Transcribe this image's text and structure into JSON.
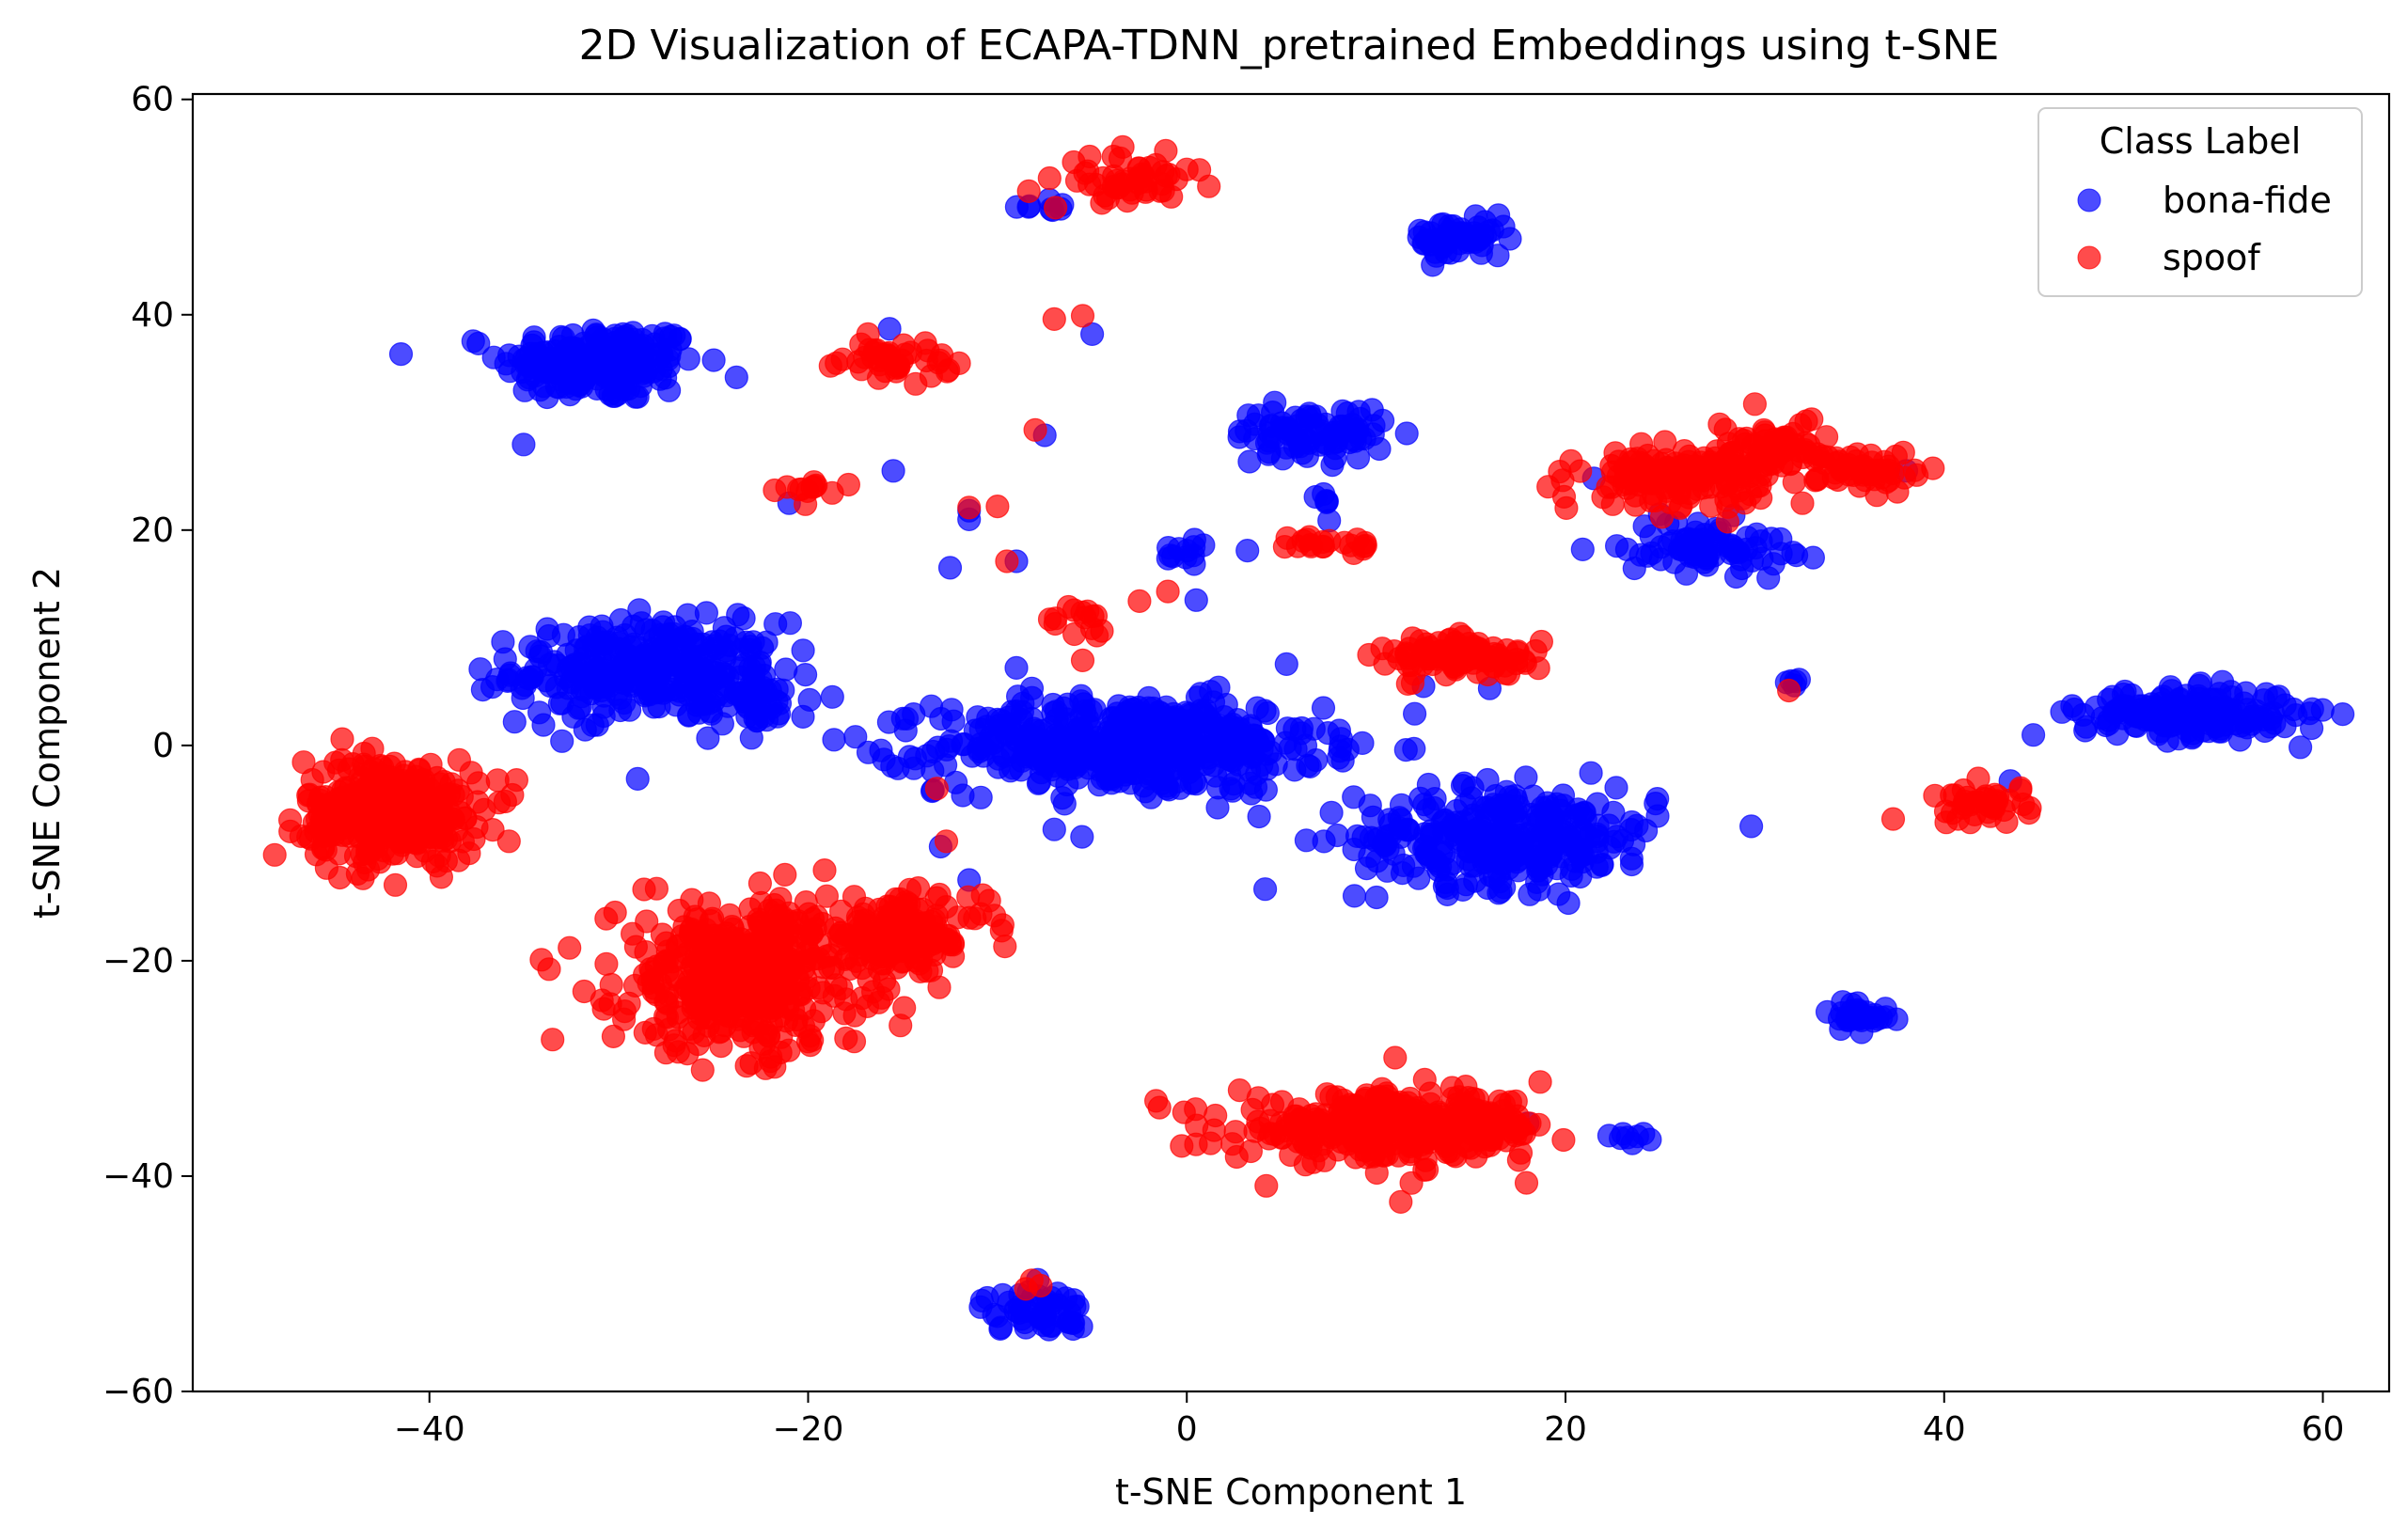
{
  "chart_data": {
    "type": "scatter",
    "title": "2D Visualization of ECAPA-TDNN_pretrained Embeddings using t-SNE",
    "xlabel": "t-SNE Component 1",
    "ylabel": "t-SNE Component 2",
    "xlim": [
      -52.5,
      63.5
    ],
    "ylim": [
      -60,
      60.5
    ],
    "x_ticks": [
      -40,
      -20,
      0,
      20,
      40,
      60
    ],
    "y_ticks": [
      -60,
      -40,
      -20,
      0,
      20,
      40,
      60
    ],
    "x_tick_labels": [
      "−40",
      "−20",
      "0",
      "20",
      "40",
      "60"
    ],
    "y_tick_labels": [
      "−60",
      "−40",
      "−20",
      "0",
      "20",
      "40",
      "60"
    ],
    "grid": false,
    "legend": {
      "title": "Class Label",
      "placement": "top-right"
    },
    "series": [
      {
        "name": "bona-fide",
        "color": "#0000ff",
        "clusters": [
          {
            "cx": -31,
            "cy": 35.5,
            "sx": 2.6,
            "sy": 1.8,
            "n": 200
          },
          {
            "cx": -28.5,
            "cy": 7,
            "sx": 3.5,
            "sy": 2.2,
            "n": 300
          },
          {
            "cx": -23,
            "cy": 4,
            "sx": 1.6,
            "sy": 1.2,
            "n": 40
          },
          {
            "cx": -3,
            "cy": 0,
            "sx": 5,
            "sy": 2.2,
            "n": 500
          },
          {
            "cx": 17,
            "cy": -8.5,
            "sx": 4,
            "sy": 2.3,
            "n": 300
          },
          {
            "cx": 53,
            "cy": 3,
            "sx": 2.8,
            "sy": 1.1,
            "n": 200
          },
          {
            "cx": 14.5,
            "cy": 47,
            "sx": 1.3,
            "sy": 0.9,
            "n": 60
          },
          {
            "cx": 6.5,
            "cy": 29,
            "sx": 2,
            "sy": 1.2,
            "n": 80
          },
          {
            "cx": 27.5,
            "cy": 18.5,
            "sx": 2.2,
            "sy": 1.2,
            "n": 80
          },
          {
            "cx": -8,
            "cy": -52.5,
            "sx": 1.4,
            "sy": 1,
            "n": 50
          },
          {
            "cx": 35.5,
            "cy": -25,
            "sx": 0.9,
            "sy": 0.7,
            "n": 30
          },
          {
            "cx": 23.5,
            "cy": -36.5,
            "sx": 0.6,
            "sy": 0.4,
            "n": 8
          },
          {
            "cx": 0,
            "cy": 18,
            "sx": 0.8,
            "sy": 1,
            "n": 12
          },
          {
            "cx": -8,
            "cy": 49.5,
            "sx": 0.8,
            "sy": 0.9,
            "n": 8
          },
          {
            "cx": 7,
            "cy": 23,
            "sx": 0.4,
            "sy": 0.8,
            "n": 6
          },
          {
            "cx": 32.3,
            "cy": 5.7,
            "sx": 0.3,
            "sy": 0.3,
            "n": 5
          }
        ],
        "points": [
          [
            -35.5,
            2.2
          ],
          [
            -33,
            0.4
          ],
          [
            -29,
            -3.1
          ],
          [
            -17.5,
            0.8
          ],
          [
            -16,
            -1.3
          ],
          [
            -11,
            -0.3
          ],
          [
            -10.5,
            2.5
          ],
          [
            -13,
            -9.4
          ],
          [
            -11.5,
            -12.5
          ],
          [
            -9,
            7.2
          ],
          [
            -7,
            -7.8
          ],
          [
            -15.5,
            25.5
          ],
          [
            -15.7,
            38.7
          ],
          [
            -11.5,
            21.8
          ],
          [
            -12.5,
            16.5
          ],
          [
            -9,
            17.1
          ],
          [
            -7.5,
            28.8
          ],
          [
            -5,
            38.2
          ],
          [
            3.2,
            18.1
          ],
          [
            0.5,
            13.5
          ],
          [
            -21,
            22.5
          ],
          [
            12.3,
            47.8
          ],
          [
            38,
            25.5
          ],
          [
            43.5,
            -3.3
          ],
          [
            12.5,
            5.5
          ],
          [
            16,
            5.3
          ],
          [
            18,
            -35.1
          ],
          [
            -10,
            2.4
          ],
          [
            -11.5,
            21
          ],
          [
            21.5,
            24.8
          ]
        ]
      },
      {
        "name": "spoof",
        "color": "#ff0000",
        "clusters": [
          {
            "cx": -42,
            "cy": -6,
            "sx": 2.3,
            "sy": 2.4,
            "n": 350
          },
          {
            "cx": -23.5,
            "cy": -21.5,
            "sx": 3.3,
            "sy": 3.4,
            "n": 450
          },
          {
            "cx": -15,
            "cy": -17.5,
            "sx": 2.2,
            "sy": 1.6,
            "n": 150
          },
          {
            "cx": 11,
            "cy": -35.5,
            "sx": 4.2,
            "sy": 1.5,
            "n": 350
          },
          {
            "cx": -3,
            "cy": 52.5,
            "sx": 1.6,
            "sy": 1.1,
            "n": 50
          },
          {
            "cx": -15.5,
            "cy": 35.8,
            "sx": 1.5,
            "sy": 0.8,
            "n": 40
          },
          {
            "cx": 26,
            "cy": 25,
            "sx": 2.5,
            "sy": 1.2,
            "n": 150
          },
          {
            "cx": 31,
            "cy": 28,
            "sx": 1.6,
            "sy": 1.1,
            "n": 60
          },
          {
            "cx": 36,
            "cy": 25.5,
            "sx": 1.3,
            "sy": 1,
            "n": 50
          },
          {
            "cx": 14.5,
            "cy": 8.2,
            "sx": 2,
            "sy": 0.9,
            "n": 100
          },
          {
            "cx": 7.5,
            "cy": 18.7,
            "sx": 1,
            "sy": 0.5,
            "n": 20
          },
          {
            "cx": 42,
            "cy": -5.5,
            "sx": 1.3,
            "sy": 0.9,
            "n": 40
          },
          {
            "cx": -20,
            "cy": 24,
            "sx": 0.7,
            "sy": 0.6,
            "n": 12
          },
          {
            "cx": -5.5,
            "cy": 11,
            "sx": 1,
            "sy": 1,
            "n": 14
          },
          {
            "cx": -8,
            "cy": -50,
            "sx": 0.3,
            "sy": 0.3,
            "n": 3
          }
        ],
        "points": [
          [
            -35.8,
            -8.9
          ],
          [
            -13.2,
            -4
          ],
          [
            -12.7,
            -8.9
          ],
          [
            4.2,
            -40.9
          ],
          [
            11.3,
            -42.4
          ],
          [
            11,
            -29
          ],
          [
            -5.5,
            39.9
          ],
          [
            -7,
            39.6
          ],
          [
            -8,
            29.3
          ],
          [
            -11.5,
            22.1
          ],
          [
            -10,
            22.2
          ],
          [
            -9.5,
            17.1
          ],
          [
            -1,
            14.3
          ],
          [
            -2.5,
            13.4
          ],
          [
            -5.5,
            7.9
          ],
          [
            -18.5,
            35.5
          ],
          [
            0,
            53.5
          ],
          [
            31.8,
            5.1
          ],
          [
            22.5,
            22.4
          ],
          [
            24,
            28
          ],
          [
            30,
            31.7
          ],
          [
            33,
            30.3
          ],
          [
            -18,
            -27.2
          ],
          [
            -20,
            -27.5
          ],
          [
            -23,
            -29.5
          ],
          [
            -28,
            -13.3
          ],
          [
            -13.5,
            34.3
          ]
        ]
      }
    ]
  }
}
